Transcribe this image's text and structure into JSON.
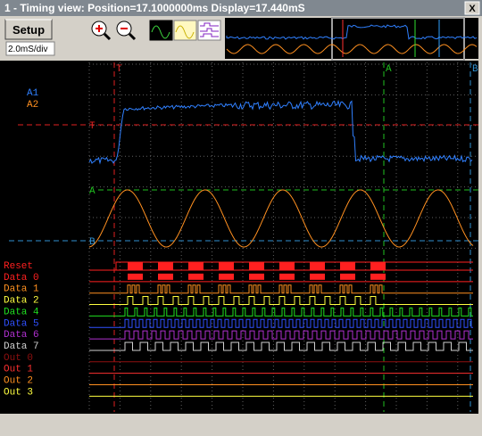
{
  "window": {
    "title": "1 - Timing view: Position=17.1000000ms Display=17.440mS",
    "close": "X"
  },
  "toolbar": {
    "setup": "Setup",
    "timebase": "2.0mS/div"
  },
  "cursors": {
    "top": [
      "T",
      "A",
      "B"
    ],
    "left": [
      "T",
      "A",
      "B"
    ]
  },
  "analog": {
    "channels": [
      "A1",
      "A2"
    ]
  },
  "digital": {
    "channels": [
      "Reset",
      "Data 0",
      "Data 1",
      "Data 2",
      "Data 4",
      "Data 5",
      "Data 6",
      "Data 7",
      "Out 0",
      "Out 1",
      "Out 2",
      "Out 3"
    ]
  }
}
